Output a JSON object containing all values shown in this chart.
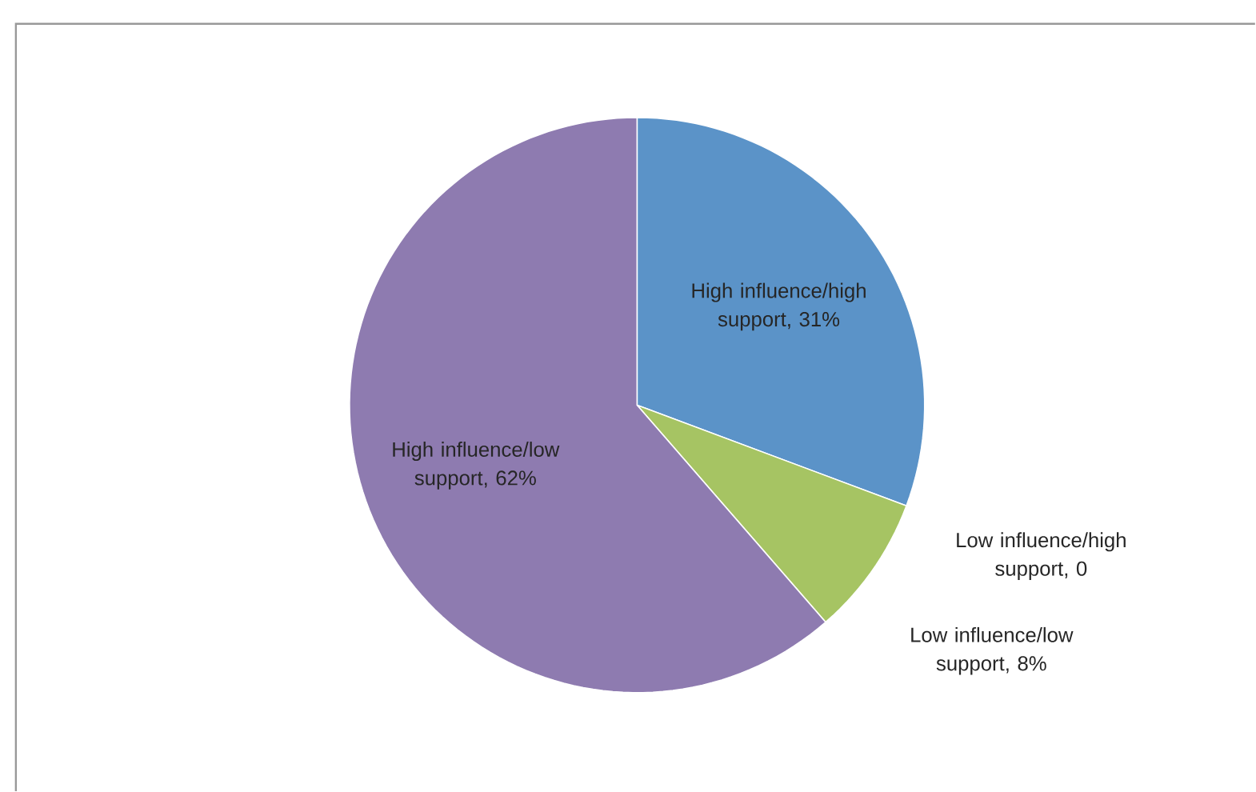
{
  "chart_data": {
    "type": "pie",
    "categories": [
      "High influence/high support",
      "Low influence/high support",
      "Low influence/low support",
      "High influence/low support"
    ],
    "values": [
      31,
      0,
      8,
      62
    ],
    "value_labels": [
      ", 31%",
      ", 0",
      ", 8%",
      ", 62%"
    ],
    "colors": [
      "#5b93c8",
      "#c0504d",
      "#a6c463",
      "#8e7bb0"
    ]
  }
}
